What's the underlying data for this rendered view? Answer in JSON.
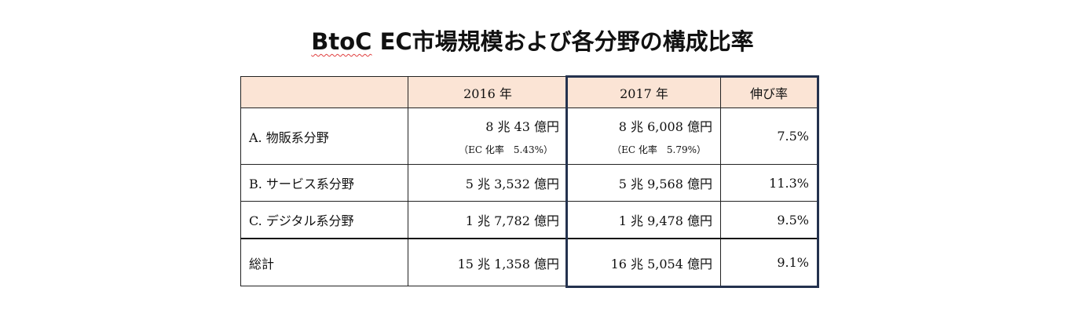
{
  "title": {
    "part1": "BtoC",
    "part2": " EC市場規模および各分野の構成比率"
  },
  "table": {
    "header": {
      "blank": "",
      "y2016": "2016 年",
      "y2017": "2017 年",
      "growth": "伸び率"
    },
    "rows": [
      {
        "label": "A. 物販系分野",
        "v2016": "8 兆 43 億円",
        "v2016_sub": "（EC 化率　5.43%）",
        "v2017": "8 兆 6,008  億円",
        "v2017_sub": "（EC 化率　5.79%）",
        "growth": "7.5%"
      },
      {
        "label": "B. サービス系分野",
        "v2016": "5 兆 3,532 億円",
        "v2017": "5 兆 9,568  億円",
        "growth": "11.3%"
      },
      {
        "label": "C. デジタル系分野",
        "v2016": "1 兆 7,782 億円",
        "v2017": "1 兆 9,478  億円",
        "growth": "9.5%"
      }
    ],
    "total": {
      "label": "総計",
      "v2016": "15 兆 1,358 億円",
      "v2017": "16 兆 5,054  億円",
      "growth": "9.1%"
    }
  },
  "colors": {
    "header_bg": "#fbe4d5",
    "highlight_border": "#24324e",
    "spellcheck_underline": "#e04040"
  }
}
